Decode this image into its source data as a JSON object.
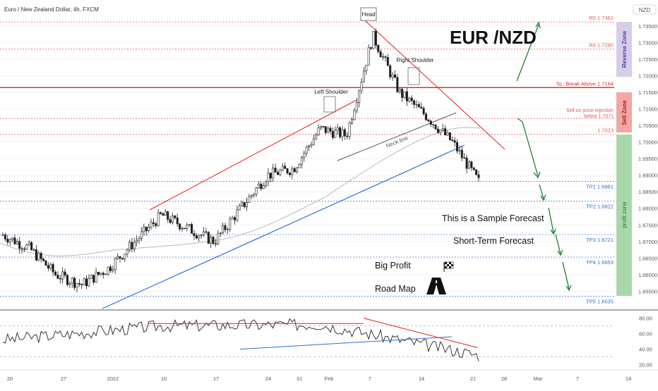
{
  "header": {
    "symbol_title": "Euro / New Zealand Dollar, 4h, FXCM",
    "currency": "NZD"
  },
  "annotations": {
    "pair_title": "EUR /NZD",
    "head": "Head",
    "left_shoulder": "Left Shoulder",
    "right_shoulder": "Right Shoulder",
    "neckline": "Neck line",
    "sample_forecast": "This is a Sample Forecast",
    "short_term": "Short-Term Forecast",
    "big_profit": "Big Profit",
    "road_map": "Road Map"
  },
  "zones": {
    "reverse": "Reverse Zone",
    "sell": "Sell Zone",
    "profit": "profit zone"
  },
  "chart_data": [
    {
      "type": "line",
      "title": "Euro / New Zealand Dollar, 4h, FXCM",
      "currency": "NZD",
      "x_labels": [
        "20",
        "27",
        "2022",
        "10",
        "17",
        "24",
        "31",
        "Feb",
        "7",
        "14",
        "21",
        "28",
        "Mar",
        "7",
        "14"
      ],
      "y_ticks": [
        1.655,
        1.66,
        1.665,
        1.67,
        1.675,
        1.68,
        1.685,
        1.69,
        1.695,
        1.7,
        1.705,
        1.71,
        1.715,
        1.72,
        1.725,
        1.73,
        1.735
      ],
      "ylim": [
        1.65,
        1.7375
      ],
      "series": [
        {
          "style": "candlestick",
          "x": [
            "Dec 20",
            "Dec 23",
            "Dec 27",
            "Dec 30",
            "Jan 3",
            "Jan 6",
            "Jan 10",
            "Jan 13",
            "Jan 17",
            "Jan 20",
            "Jan 24",
            "Jan 27",
            "Jan 31",
            "Feb 3",
            "Feb 7",
            "Feb 10",
            "Feb 14",
            "Feb 17",
            "Feb 21"
          ],
          "values": [
            1.672,
            1.668,
            1.66,
            1.657,
            1.662,
            1.67,
            1.678,
            1.674,
            1.67,
            1.68,
            1.69,
            1.692,
            1.704,
            1.702,
            1.732,
            1.715,
            1.708,
            1.7,
            1.688
          ]
        }
      ],
      "levels": [
        {
          "label": "R5 1.7362",
          "value": 1.7362,
          "color": "#e05a5a"
        },
        {
          "label": "R4 1.7280",
          "value": 1.728,
          "color": "#e05a5a"
        },
        {
          "label": "SL: Break Above 1.7164",
          "value": 1.7164,
          "color": "#e02020"
        },
        {
          "label": "Sell on price rejection below 1.7071",
          "label_lines": [
            "Sell on price rejection",
            "below 1.7071"
          ],
          "value": 1.7071,
          "color": "#e05a5a"
        },
        {
          "label": "1.7023",
          "value": 1.7023,
          "color": "#e05a5a"
        },
        {
          "label": "TP1 1.6881",
          "value": 1.6881,
          "color": "#2f6fd0"
        },
        {
          "label": "TP2 1.6822",
          "value": 1.6822,
          "color": "#2f6fd0"
        },
        {
          "label": "TP3 1.6721",
          "value": 1.6721,
          "color": "#2f6fd0"
        },
        {
          "label": "TP4 1.6653",
          "value": 1.6653,
          "color": "#2f6fd0"
        },
        {
          "label": "TP5 1.6535",
          "value": 1.6535,
          "color": "#2f6fd0"
        }
      ],
      "colors": {
        "up": "#1e1e1e",
        "down": "#1e1e1e",
        "resistance": "#e02020",
        "support": "#2f6fd0",
        "forecast": "#1e7d32"
      }
    },
    {
      "type": "line",
      "y_ticks": [
        20,
        40,
        60,
        80
      ],
      "ylim": [
        16,
        86
      ],
      "series": [
        {
          "x": [
            "Dec 20",
            "Jan 10",
            "Feb 7",
            "Feb 21"
          ],
          "values": [
            52,
            70,
            72,
            32
          ]
        }
      ],
      "levels": [
        {
          "value": 70
        },
        {
          "value": 30
        }
      ]
    }
  ]
}
